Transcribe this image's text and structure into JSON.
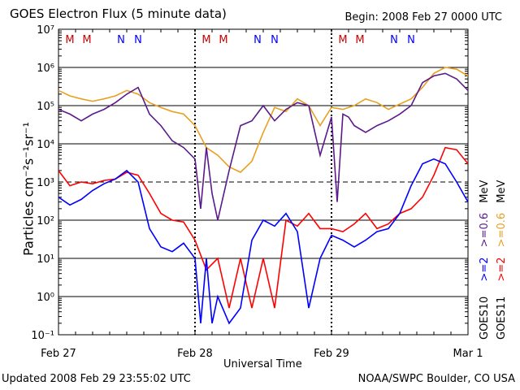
{
  "header": {
    "title": "GOES Electron Flux (5 minute data)",
    "begin": "Begin: 2008 Feb 27 0000 UTC"
  },
  "footer": {
    "updated": "Updated 2008 Feb 29 23:55:02 UTC",
    "credit": "NOAA/SWPC Boulder, CO USA"
  },
  "colors": {
    "goes10_ge2": "#0000ff",
    "goes11_ge2": "#ff0000",
    "goes10_ge06": "#5a1a8c",
    "goes11_ge06": "#e8a020",
    "marker_m": "#cc0000",
    "marker_n": "#0000ff",
    "grid": "#000000"
  },
  "chart_data": {
    "type": "line",
    "title": "GOES Electron Flux (5 minute data)",
    "xlabel": "Universal Time",
    "ylabel": "Particles cm⁻²s⁻¹sr⁻¹",
    "y_scale": "log",
    "ylim": [
      0.1,
      10000000
    ],
    "y_tick_labels": [
      "10⁻¹",
      "10⁰",
      "10¹",
      "10²",
      "10³",
      "10⁴",
      "10⁵",
      "10⁶",
      "10⁷"
    ],
    "x_unit": "hours since 2008 Feb 27 0000 UTC",
    "xlim": [
      0,
      72
    ],
    "x_tick_labels": [
      "Feb 27",
      "Feb 28",
      "Feb 29",
      "Mar 1"
    ],
    "x_tick_values": [
      0,
      24,
      48,
      72
    ],
    "reference_line_y": 1000,
    "day_markers": [
      {
        "label": "M",
        "x": 2
      },
      {
        "label": "M",
        "x": 5
      },
      {
        "label": "N",
        "x": 11
      },
      {
        "label": "N",
        "x": 14
      },
      {
        "label": "M",
        "x": 26
      },
      {
        "label": "M",
        "x": 29
      },
      {
        "label": "N",
        "x": 35
      },
      {
        "label": "N",
        "x": 38
      },
      {
        "label": "M",
        "x": 50
      },
      {
        "label": "M",
        "x": 53
      },
      {
        "label": "N",
        "x": 59
      },
      {
        "label": "N",
        "x": 62
      }
    ],
    "legend": {
      "satellites": [
        "GOES10",
        "GOES11"
      ],
      "energies": [
        ">=2",
        ">=0.6",
        ">=2",
        ">=0.6"
      ],
      "unit": "MeV"
    },
    "series": [
      {
        "name": "GOES11 >=0.6 MeV",
        "color": "#e8a020",
        "x": [
          0,
          2,
          4,
          6,
          8,
          10,
          12,
          14,
          16,
          18,
          20,
          22,
          24,
          26,
          28,
          30,
          32,
          34,
          36,
          38,
          40,
          42,
          44,
          46,
          48,
          50,
          52,
          54,
          56,
          58,
          60,
          62,
          64,
          66,
          68,
          70,
          72
        ],
        "y": [
          250000,
          180000,
          150000,
          130000,
          150000,
          180000,
          250000,
          200000,
          120000,
          90000,
          70000,
          60000,
          30000,
          8000,
          5000,
          2500,
          1800,
          3500,
          20000,
          90000,
          70000,
          150000,
          100000,
          30000,
          90000,
          80000,
          100000,
          150000,
          120000,
          80000,
          110000,
          150000,
          300000,
          700000,
          1000000,
          900000,
          600000
        ]
      },
      {
        "name": "GOES10 >=0.6 MeV",
        "color": "#5a1a8c",
        "x": [
          0,
          2,
          4,
          6,
          8,
          10,
          12,
          14,
          16,
          18,
          20,
          22,
          24,
          25,
          26,
          27,
          28,
          30,
          32,
          34,
          36,
          38,
          40,
          42,
          44,
          46,
          48,
          49,
          50,
          51,
          52,
          54,
          56,
          58,
          60,
          62,
          64,
          66,
          68,
          70,
          72
        ],
        "y": [
          80000,
          60000,
          40000,
          60000,
          80000,
          120000,
          200000,
          300000,
          60000,
          30000,
          12000,
          8000,
          4000,
          200,
          8000,
          500,
          100,
          2000,
          30000,
          40000,
          100000,
          40000,
          80000,
          120000,
          100000,
          5000,
          50000,
          300,
          60000,
          50000,
          30000,
          20000,
          30000,
          40000,
          60000,
          100000,
          400000,
          600000,
          700000,
          500000,
          250000
        ]
      },
      {
        "name": "GOES11 >=2 MeV",
        "color": "#ff0000",
        "x": [
          0,
          2,
          4,
          6,
          8,
          10,
          12,
          14,
          16,
          18,
          20,
          22,
          24,
          26,
          28,
          30,
          32,
          34,
          36,
          38,
          40,
          42,
          44,
          46,
          48,
          50,
          52,
          54,
          56,
          58,
          60,
          62,
          64,
          66,
          68,
          70,
          72
        ],
        "y": [
          2000,
          800,
          1000,
          900,
          1100,
          1200,
          1800,
          1500,
          500,
          150,
          100,
          90,
          30,
          5,
          10,
          0.5,
          10,
          0.5,
          10,
          0.5,
          100,
          70,
          150,
          60,
          60,
          50,
          80,
          150,
          60,
          80,
          150,
          200,
          400,
          1500,
          8000,
          7000,
          3000
        ]
      },
      {
        "name": "GOES10 >=2 MeV",
        "color": "#0000ff",
        "x": [
          0,
          2,
          4,
          6,
          8,
          10,
          12,
          14,
          16,
          18,
          20,
          22,
          24,
          25,
          26,
          27,
          28,
          30,
          32,
          34,
          36,
          38,
          40,
          42,
          44,
          46,
          48,
          50,
          52,
          54,
          56,
          58,
          60,
          62,
          64,
          66,
          68,
          70,
          72
        ],
        "y": [
          400,
          250,
          350,
          600,
          900,
          1200,
          2000,
          1000,
          60,
          20,
          15,
          25,
          10,
          0.2,
          10,
          0.2,
          1,
          0.2,
          0.5,
          30,
          100,
          70,
          150,
          50,
          0.5,
          10,
          40,
          30,
          20,
          30,
          50,
          60,
          150,
          800,
          3000,
          4000,
          3000,
          1000,
          300
        ]
      }
    ]
  }
}
